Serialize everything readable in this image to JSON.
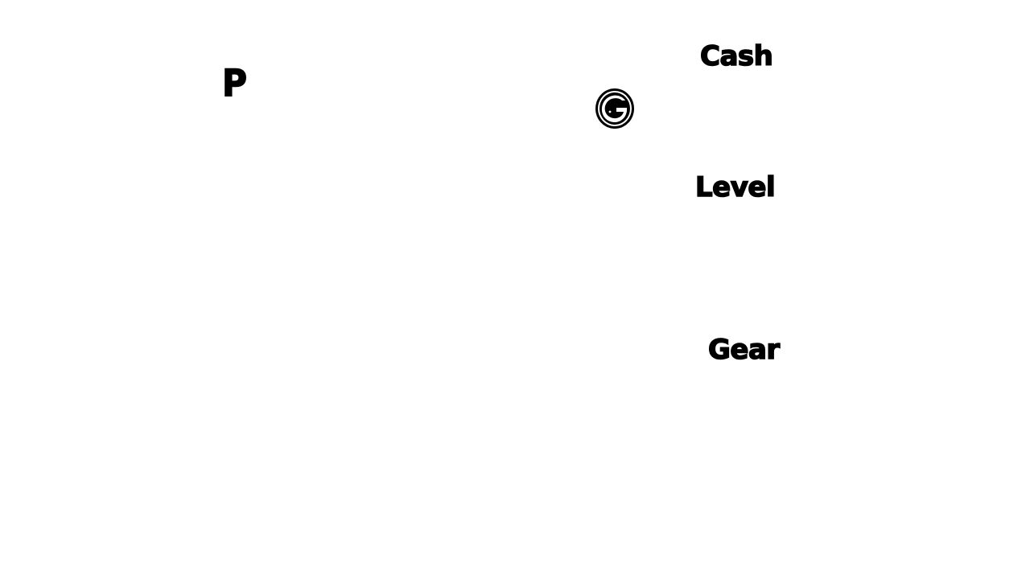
{
  "hud": {
    "player_marker": "P",
    "cash_label": "Cash",
    "level_label": "Level",
    "gear_label": "Gear"
  },
  "icons": {
    "coin": "coin-icon"
  },
  "colors": {
    "background": "#ffffff",
    "foreground": "#000000"
  }
}
